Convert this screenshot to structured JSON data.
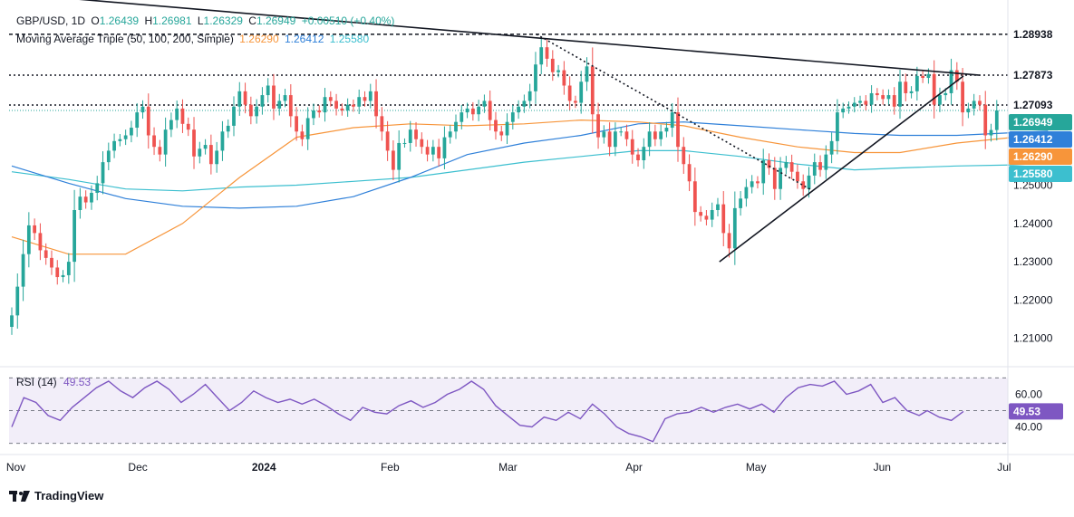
{
  "header": {
    "symbol": "GBP/USD, 1D",
    "o_label": "O",
    "o_value": "1.26439",
    "h_label": "H",
    "h_value": "1.26981",
    "l_label": "L",
    "l_value": "1.26329",
    "c_label": "C",
    "c_value": "1.26949",
    "change": "+0.00510 (+0.40%)",
    "ma_title": "Moving Average Triple (50, 100, 200, Simple)",
    "ma50_value": "1.26290",
    "ma100_value": "1.26412",
    "ma200_value": "1.25580"
  },
  "rsi": {
    "title": "RSI (14)",
    "value": "49.53"
  },
  "logo": {
    "text": "TradingView"
  },
  "colors": {
    "up": "#26a69a",
    "down": "#ef5350",
    "ma50": "#f7953a",
    "ma100": "#2f80d9",
    "ma200": "#3cbfcf",
    "rsi": "#7e57c2",
    "trendline": "#131722"
  },
  "chart_data": {
    "type": "candlestick",
    "price_axis": {
      "ticks": [
        "1.21000",
        "1.22000",
        "1.23000",
        "1.24000",
        "1.25000"
      ],
      "range": [
        1.2045,
        1.2955
      ]
    },
    "price_labels": [
      {
        "text": "1.28938",
        "value": 1.28938,
        "bg": "#ffffff",
        "fg": "#131722"
      },
      {
        "text": "1.27873",
        "value": 1.27873,
        "bg": "#ffffff",
        "fg": "#131722"
      },
      {
        "text": "1.27093",
        "value": 1.27093,
        "bg": "#ffffff",
        "fg": "#131722"
      },
      {
        "text": "1.26949",
        "value": 1.26949,
        "bg": "#26a69a",
        "fg": "#ffffff"
      },
      {
        "text": "1.26412",
        "value": 1.26412,
        "bg": "#2f80d9",
        "fg": "#ffffff"
      },
      {
        "text": "1.26290",
        "value": 1.2629,
        "bg": "#f7953a",
        "fg": "#ffffff"
      },
      {
        "text": "1.25580",
        "value": 1.2558,
        "bg": "#3cbfcf",
        "fg": "#ffffff"
      }
    ],
    "time_axis": [
      "Nov",
      "Dec",
      "2024",
      "Feb",
      "Mar",
      "Apr",
      "May",
      "Jun",
      "Jul"
    ],
    "time_axis_dates": [
      "2023-11-01",
      "2023-12-01",
      "2024-01-01",
      "2024-02-01",
      "2024-03-01",
      "2024-04-01",
      "2024-05-01",
      "2024-06-01",
      "2024-07-01"
    ],
    "first_date": "2023-10-31",
    "rsi_axis": {
      "ticks": [
        "60.00",
        "40.00"
      ],
      "range": [
        27,
        73
      ],
      "bands": [
        70,
        30
      ],
      "mid": 50
    },
    "levels": [
      {
        "value": 1.28938,
        "style": "dashed"
      },
      {
        "value": 1.27873,
        "style": "dotted"
      },
      {
        "value": 1.27093,
        "style": "dotted"
      },
      {
        "value": 1.26949,
        "style": "dotted-current"
      }
    ],
    "trendlines": [
      {
        "from": [
          "2023-11-09",
          1.2992
        ],
        "to": [
          "2024-06-25",
          1.2787
        ],
        "style": "solid"
      },
      {
        "from": [
          "2024-04-22",
          1.23
        ],
        "to": [
          "2024-06-21",
          1.2785
        ],
        "style": "solid"
      },
      {
        "from": [
          "2024-03-08",
          1.2894
        ],
        "to": [
          "2024-05-15",
          1.2485
        ],
        "style": "dotted"
      }
    ],
    "closes": [
      1.216,
      1.2235,
      1.232,
      1.2395,
      1.2375,
      1.233,
      1.231,
      1.2285,
      1.226,
      1.2265,
      1.23,
      1.2435,
      1.247,
      1.2455,
      1.248,
      1.2505,
      1.256,
      1.259,
      1.2615,
      1.262,
      1.263,
      1.265,
      1.269,
      1.2705,
      1.263,
      1.26,
      1.258,
      1.2645,
      1.267,
      1.27,
      1.266,
      1.2645,
      1.2575,
      1.2595,
      1.2605,
      1.2555,
      1.259,
      1.264,
      1.2655,
      1.2705,
      1.2745,
      1.271,
      1.268,
      1.2705,
      1.2735,
      1.276,
      1.27,
      1.272,
      1.2735,
      1.268,
      1.264,
      1.262,
      1.2675,
      1.2695,
      1.269,
      1.273,
      1.272,
      1.27,
      1.2695,
      1.271,
      1.2705,
      1.273,
      1.272,
      1.2745,
      1.268,
      1.264,
      1.259,
      1.254,
      1.261,
      1.261,
      1.2645,
      1.262,
      1.26,
      1.258,
      1.26,
      1.257,
      1.2625,
      1.264,
      1.2665,
      1.269,
      1.27,
      1.2685,
      1.2705,
      1.272,
      1.267,
      1.264,
      1.263,
      1.2665,
      1.269,
      1.2705,
      1.272,
      1.2745,
      1.2815,
      1.286,
      1.283,
      1.2795,
      1.28,
      1.276,
      1.272,
      1.2715,
      1.277,
      1.281,
      1.2685,
      1.2625,
      1.264,
      1.26,
      1.264,
      1.264,
      1.262,
      1.258,
      1.2565,
      1.26,
      1.264,
      1.262,
      1.264,
      1.265,
      1.269,
      1.26,
      1.2555,
      1.251,
      1.243,
      1.242,
      1.241,
      1.2435,
      1.245,
      1.2375,
      1.2335,
      1.244,
      1.2465,
      1.2495,
      1.251,
      1.2505,
      1.2565,
      1.2545,
      1.249,
      1.2545,
      1.256,
      1.2535,
      1.251,
      1.249,
      1.2525,
      1.256,
      1.254,
      1.258,
      1.2615,
      1.269,
      1.27,
      1.2705,
      1.2715,
      1.272,
      1.271,
      1.274,
      1.2735,
      1.2725,
      1.2735,
      1.2705,
      1.277,
      1.274,
      1.2745,
      1.2785,
      1.278,
      1.279,
      1.271,
      1.2735,
      1.274,
      1.28,
      1.277,
      1.269,
      1.27,
      1.272,
      1.271,
      1.263,
      1.2644,
      1.2695
    ],
    "ma50": [
      [
        0,
        1.2365
      ],
      [
        10,
        1.232
      ],
      [
        20,
        1.232
      ],
      [
        30,
        1.24
      ],
      [
        40,
        1.252
      ],
      [
        50,
        1.2625
      ],
      [
        60,
        1.265
      ],
      [
        70,
        1.266
      ],
      [
        80,
        1.2655
      ],
      [
        90,
        1.266
      ],
      [
        100,
        1.267
      ],
      [
        110,
        1.2665
      ],
      [
        118,
        1.2655
      ],
      [
        128,
        1.2625
      ],
      [
        138,
        1.26
      ],
      [
        148,
        1.2585
      ],
      [
        156,
        1.2585
      ],
      [
        166,
        1.261
      ],
      [
        176,
        1.2625
      ],
      [
        182,
        1.2629
      ]
    ],
    "ma100": [
      [
        0,
        1.255
      ],
      [
        10,
        1.2505
      ],
      [
        20,
        1.2465
      ],
      [
        30,
        1.2445
      ],
      [
        40,
        1.244
      ],
      [
        50,
        1.2445
      ],
      [
        60,
        1.247
      ],
      [
        70,
        1.252
      ],
      [
        80,
        1.258
      ],
      [
        90,
        1.261
      ],
      [
        100,
        1.263
      ],
      [
        110,
        1.266
      ],
      [
        118,
        1.2665
      ],
      [
        128,
        1.2655
      ],
      [
        138,
        1.2645
      ],
      [
        148,
        1.2635
      ],
      [
        156,
        1.263
      ],
      [
        166,
        1.263
      ],
      [
        176,
        1.2637
      ],
      [
        182,
        1.2641
      ]
    ],
    "ma200": [
      [
        0,
        1.2535
      ],
      [
        10,
        1.2515
      ],
      [
        20,
        1.249
      ],
      [
        30,
        1.2485
      ],
      [
        40,
        1.2495
      ],
      [
        50,
        1.25
      ],
      [
        60,
        1.251
      ],
      [
        70,
        1.252
      ],
      [
        80,
        1.254
      ],
      [
        90,
        1.256
      ],
      [
        100,
        1.2575
      ],
      [
        110,
        1.259
      ],
      [
        118,
        1.259
      ],
      [
        128,
        1.2575
      ],
      [
        138,
        1.2555
      ],
      [
        148,
        1.254
      ],
      [
        156,
        1.2545
      ],
      [
        166,
        1.255
      ],
      [
        176,
        1.2553
      ],
      [
        182,
        1.2558
      ]
    ],
    "rsi_values": [
      [
        0,
        40
      ],
      [
        3,
        58
      ],
      [
        6,
        55
      ],
      [
        9,
        47
      ],
      [
        12,
        44
      ],
      [
        15,
        52
      ],
      [
        18,
        58
      ],
      [
        21,
        64
      ],
      [
        24,
        68
      ],
      [
        27,
        62
      ],
      [
        30,
        58
      ],
      [
        33,
        64
      ],
      [
        36,
        68
      ],
      [
        39,
        63
      ],
      [
        42,
        55
      ],
      [
        45,
        60
      ],
      [
        48,
        66
      ],
      [
        51,
        58
      ],
      [
        54,
        50
      ],
      [
        57,
        55
      ],
      [
        60,
        62
      ],
      [
        63,
        58
      ],
      [
        66,
        55
      ],
      [
        69,
        57
      ],
      [
        72,
        54
      ],
      [
        75,
        57
      ],
      [
        78,
        53
      ],
      [
        81,
        48
      ],
      [
        84,
        44
      ],
      [
        87,
        52
      ],
      [
        90,
        49
      ],
      [
        93,
        48
      ],
      [
        96,
        53
      ],
      [
        99,
        56
      ],
      [
        102,
        52
      ],
      [
        105,
        55
      ],
      [
        108,
        60
      ],
      [
        111,
        63
      ],
      [
        114,
        68
      ],
      [
        117,
        63
      ],
      [
        120,
        53
      ],
      [
        123,
        47
      ],
      [
        126,
        41
      ],
      [
        129,
        40
      ],
      [
        132,
        46
      ],
      [
        135,
        44
      ],
      [
        138,
        49
      ],
      [
        141,
        45
      ],
      [
        144,
        54
      ],
      [
        147,
        48
      ],
      [
        150,
        40
      ],
      [
        153,
        36
      ],
      [
        156,
        34
      ],
      [
        159,
        31
      ],
      [
        162,
        45
      ],
      [
        165,
        48
      ],
      [
        168,
        49
      ],
      [
        171,
        52
      ],
      [
        174,
        49
      ],
      [
        177,
        52
      ],
      [
        180,
        54
      ],
      [
        183,
        51
      ],
      [
        186,
        54
      ],
      [
        189,
        49
      ],
      [
        192,
        58
      ],
      [
        195,
        64
      ],
      [
        198,
        66
      ],
      [
        201,
        65
      ],
      [
        204,
        68
      ],
      [
        207,
        60
      ],
      [
        210,
        62
      ],
      [
        213,
        66
      ],
      [
        216,
        55
      ],
      [
        219,
        58
      ],
      [
        222,
        50
      ],
      [
        225,
        47
      ],
      [
        227,
        50
      ],
      [
        230,
        46
      ],
      [
        233,
        44
      ],
      [
        236,
        49.5
      ]
    ]
  }
}
